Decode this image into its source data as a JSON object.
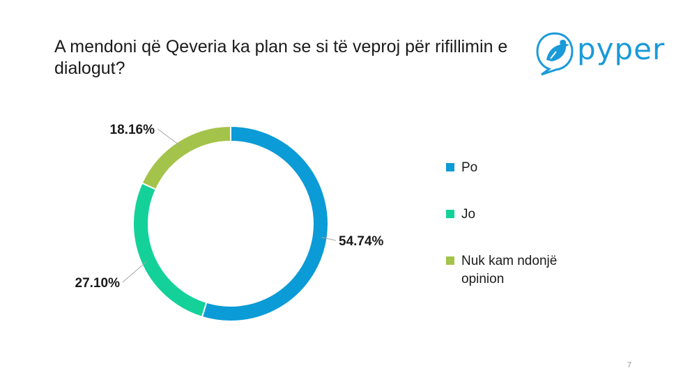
{
  "slide": {
    "title": "A mendoni që Qeveria ka plan se si të veproj për rifillimin e dialogut?",
    "page_number": "7"
  },
  "logo": {
    "text": "pyper",
    "icon": "bird-icon",
    "color": "#1a9ad9"
  },
  "chart_data": {
    "type": "pie",
    "donut": true,
    "categories": [
      "Po",
      "Jo",
      "Nuk kam ndonjë opinion"
    ],
    "values": [
      54.74,
      27.1,
      18.16
    ],
    "labels": [
      "54.74%",
      "27.10%",
      "18.16%"
    ],
    "colors": [
      "#0b9bd6",
      "#14d19a",
      "#a4c34a"
    ],
    "legend_position": "right"
  }
}
